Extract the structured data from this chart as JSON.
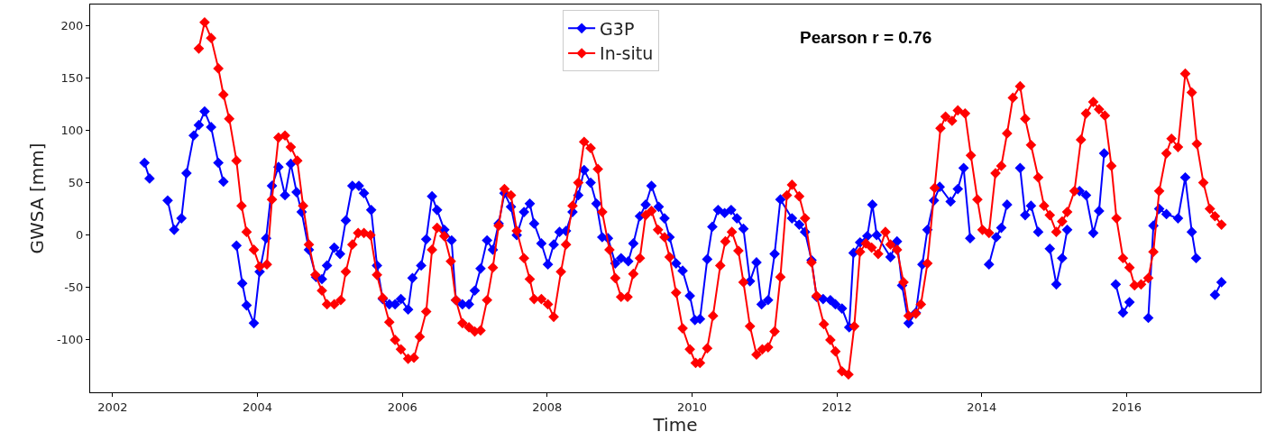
{
  "chart_data": {
    "type": "line",
    "xlabel": "Time",
    "ylabel": "GWSA [mm]",
    "annotations": [
      "Pearson r = 0.76"
    ],
    "legend": "top",
    "marker": "diamond",
    "line_style": "solid",
    "xlim": [
      2001.69,
      2017.85
    ],
    "ylim": [
      -150,
      220
    ],
    "xticks": [
      2002,
      2004,
      2006,
      2008,
      2010,
      2012,
      2014,
      2016
    ],
    "yticks": [
      -100,
      -50,
      0,
      50,
      100,
      150,
      200
    ],
    "series": [
      {
        "name": "G3P",
        "color": "#0000ff",
        "x": [
          2002.44,
          2002.51,
          2002.63,
          2002.76,
          2002.85,
          2002.95,
          2003.02,
          2003.12,
          2003.19,
          2003.27,
          2003.36,
          2003.46,
          2003.53,
          2003.62,
          2003.71,
          2003.79,
          2003.85,
          2003.95,
          2004.03,
          2004.12,
          2004.2,
          2004.29,
          2004.38,
          2004.46,
          2004.54,
          2004.61,
          2004.71,
          2004.81,
          2004.89,
          2004.96,
          2005.06,
          2005.14,
          2005.22,
          2005.31,
          2005.4,
          2005.47,
          2005.57,
          2005.65,
          2005.73,
          2005.82,
          2005.9,
          2005.98,
          2006.08,
          2006.14,
          2006.26,
          2006.33,
          2006.41,
          2006.48,
          2006.58,
          2006.68,
          2006.74,
          2006.83,
          2006.92,
          2007.0,
          2007.08,
          2007.17,
          2007.25,
          2007.33,
          2007.41,
          2007.5,
          2007.58,
          2007.68,
          2007.76,
          2007.82,
          2007.92,
          2008.01,
          2008.09,
          2008.17,
          2008.26,
          2008.35,
          2008.43,
          2008.51,
          2008.6,
          2008.68,
          2008.76,
          2008.84,
          2008.94,
          2009.02,
          2009.12,
          2009.19,
          2009.28,
          2009.36,
          2009.44,
          2009.54,
          2009.62,
          2009.69,
          2009.78,
          2009.87,
          2009.97,
          2010.04,
          2010.11,
          2010.21,
          2010.28,
          2010.36,
          2010.45,
          2010.54,
          2010.62,
          2010.71,
          2010.8,
          2010.89,
          2010.96,
          2011.05,
          2011.14,
          2011.22,
          2011.38,
          2011.48,
          2011.56,
          2011.65,
          2011.72,
          2011.81,
          2011.91,
          2011.98,
          2012.07,
          2012.17,
          2012.23,
          2012.32,
          2012.42,
          2012.49,
          2012.55,
          2012.74,
          2012.83,
          2012.9,
          2012.99,
          2013.09,
          2013.18,
          2013.25,
          2013.34,
          2013.42,
          2013.57,
          2013.67,
          2013.75,
          2013.84,
          2013.97,
          2014.1,
          2014.2,
          2014.27,
          2014.35,
          2014.44,
          2014.53,
          2014.6,
          2014.68,
          2014.78,
          2014.86,
          2014.94,
          2015.03,
          2015.11,
          2015.18,
          2015.27,
          2015.35,
          2015.44,
          2015.54,
          2015.62,
          2015.69,
          2015.77,
          2015.85,
          2015.95,
          2016.04,
          2016.17,
          2016.3,
          2016.37,
          2016.45,
          2016.55,
          2016.71,
          2016.81,
          2016.9,
          2016.96,
          2017.09,
          2017.22,
          2017.31
        ],
        "values": [
          69,
          54,
          null,
          33,
          5,
          16,
          59,
          95,
          105,
          118,
          103,
          69,
          51,
          null,
          -10,
          -46,
          -67,
          -84,
          -35,
          -3,
          47,
          65,
          38,
          68,
          41,
          22,
          -14,
          -40,
          -42,
          -29,
          -12,
          -18,
          14,
          47,
          47,
          40,
          24,
          -29,
          -61,
          -66,
          -66,
          -61,
          -71,
          -41,
          -29,
          -4,
          37,
          24,
          5,
          -5,
          -62,
          -66,
          -66,
          -53,
          -32,
          -5,
          -14,
          11,
          40,
          27,
          0,
          22,
          30,
          11,
          -8,
          -28,
          -9,
          3,
          4,
          22,
          38,
          62,
          50,
          30,
          -2,
          -3,
          -27,
          -22,
          -25,
          -8,
          18,
          29,
          47,
          27,
          16,
          -2,
          -27,
          -34,
          -58,
          -81,
          -80,
          -23,
          8,
          24,
          21,
          24,
          16,
          6,
          -44,
          -26,
          -66,
          -62,
          -18,
          34,
          16,
          10,
          3,
          -24,
          -59,
          -61,
          -62,
          -66,
          -70,
          -88,
          -17,
          -7,
          -1,
          29,
          0,
          -21,
          -6,
          -48,
          -84,
          -74,
          -28,
          5,
          33,
          46,
          32,
          44,
          64,
          -3,
          null,
          -28,
          -2,
          7,
          29,
          null,
          64,
          19,
          28,
          3,
          null,
          -13,
          -47,
          -22,
          5,
          null,
          42,
          38,
          2,
          23,
          78,
          null,
          -47,
          -74,
          -64,
          null,
          -79,
          9,
          25,
          20,
          16,
          55,
          3,
          -22,
          null,
          -57,
          -45
        ]
      },
      {
        "name": "In-situ",
        "color": "#ff0000",
        "x": [
          2003.19,
          2003.27,
          2003.36,
          2003.46,
          2003.53,
          2003.61,
          2003.71,
          2003.78,
          2003.85,
          2003.95,
          2004.03,
          2004.13,
          2004.2,
          2004.29,
          2004.38,
          2004.46,
          2004.55,
          2004.63,
          2004.71,
          2004.8,
          2004.89,
          2004.96,
          2005.06,
          2005.15,
          2005.22,
          2005.31,
          2005.39,
          2005.47,
          2005.56,
          2005.65,
          2005.73,
          2005.82,
          2005.9,
          2005.98,
          2006.08,
          2006.16,
          2006.24,
          2006.33,
          2006.41,
          2006.48,
          2006.58,
          2006.67,
          2006.74,
          2006.83,
          2006.92,
          2007.0,
          2007.08,
          2007.17,
          2007.25,
          2007.33,
          2007.41,
          2007.5,
          2007.58,
          2007.68,
          2007.76,
          2007.82,
          2007.92,
          2008.01,
          2008.09,
          2008.19,
          2008.26,
          2008.35,
          2008.43,
          2008.51,
          2008.6,
          2008.7,
          2008.76,
          2008.86,
          2008.94,
          2009.02,
          2009.11,
          2009.19,
          2009.28,
          2009.36,
          2009.44,
          2009.53,
          2009.62,
          2009.69,
          2009.78,
          2009.87,
          2009.97,
          2010.05,
          2010.11,
          2010.21,
          2010.29,
          2010.39,
          2010.46,
          2010.55,
          2010.64,
          2010.71,
          2010.8,
          2010.89,
          2010.97,
          2011.05,
          2011.14,
          2011.22,
          2011.31,
          2011.38,
          2011.48,
          2011.56,
          2011.65,
          2011.72,
          2011.82,
          2011.91,
          2011.98,
          2012.07,
          2012.16,
          2012.24,
          2012.32,
          2012.4,
          2012.48,
          2012.57,
          2012.67,
          2012.74,
          2012.83,
          2012.92,
          2012.99,
          2013.09,
          2013.16,
          2013.25,
          2013.35,
          2013.43,
          2013.5,
          2013.59,
          2013.67,
          2013.77,
          2013.85,
          2013.94,
          2014.01,
          2014.1,
          2014.19,
          2014.27,
          2014.35,
          2014.43,
          2014.53,
          2014.6,
          2014.68,
          2014.78,
          2014.86,
          2014.94,
          2015.03,
          2015.11,
          2015.18,
          2015.28,
          2015.37,
          2015.44,
          2015.54,
          2015.62,
          2015.7,
          2015.79,
          2015.86,
          2015.95,
          2016.04,
          2016.11,
          2016.2,
          2016.3,
          2016.37,
          2016.45,
          2016.55,
          2016.62,
          2016.71,
          2016.81,
          2016.9,
          2016.97,
          2017.06,
          2017.15,
          2017.22,
          2017.31
        ],
        "values": [
          178,
          203,
          188,
          159,
          134,
          111,
          71,
          28,
          3,
          -14,
          -30,
          -28,
          34,
          93,
          95,
          84,
          71,
          28,
          -9,
          -38,
          -53,
          -66,
          -66,
          -62,
          -35,
          -9,
          2,
          2,
          0,
          -38,
          -60,
          -83,
          -100,
          -109,
          -118,
          -117,
          -97,
          -73,
          -14,
          7,
          -1,
          -25,
          -62,
          -84,
          -88,
          -92,
          -91,
          -62,
          -31,
          9,
          44,
          38,
          4,
          -22,
          -42,
          -61,
          -61,
          -66,
          -78,
          -35,
          -9,
          28,
          50,
          89,
          83,
          63,
          22,
          -14,
          -41,
          -59,
          -59,
          -37,
          -22,
          19,
          23,
          5,
          -2,
          -21,
          -55,
          -89,
          -109,
          -122,
          -122,
          -108,
          -77,
          -29,
          -6,
          3,
          -15,
          -45,
          -87,
          -114,
          -109,
          -107,
          -92,
          -40,
          38,
          48,
          37,
          16,
          -26,
          -58,
          -85,
          -100,
          -111,
          -130,
          -133,
          -87,
          -16,
          -8,
          -12,
          -18,
          3,
          -9,
          -14,
          -45,
          -77,
          -75,
          -66,
          -27,
          45,
          102,
          113,
          109,
          119,
          116,
          76,
          34,
          5,
          2,
          59,
          66,
          97,
          131,
          142,
          111,
          86,
          55,
          28,
          19,
          3,
          13,
          22,
          42,
          91,
          116,
          127,
          120,
          114,
          66,
          16,
          -22,
          -31,
          -48,
          -47,
          -41,
          -16,
          42,
          78,
          92,
          84,
          154,
          136,
          87,
          50,
          25,
          18,
          10
        ]
      }
    ]
  }
}
